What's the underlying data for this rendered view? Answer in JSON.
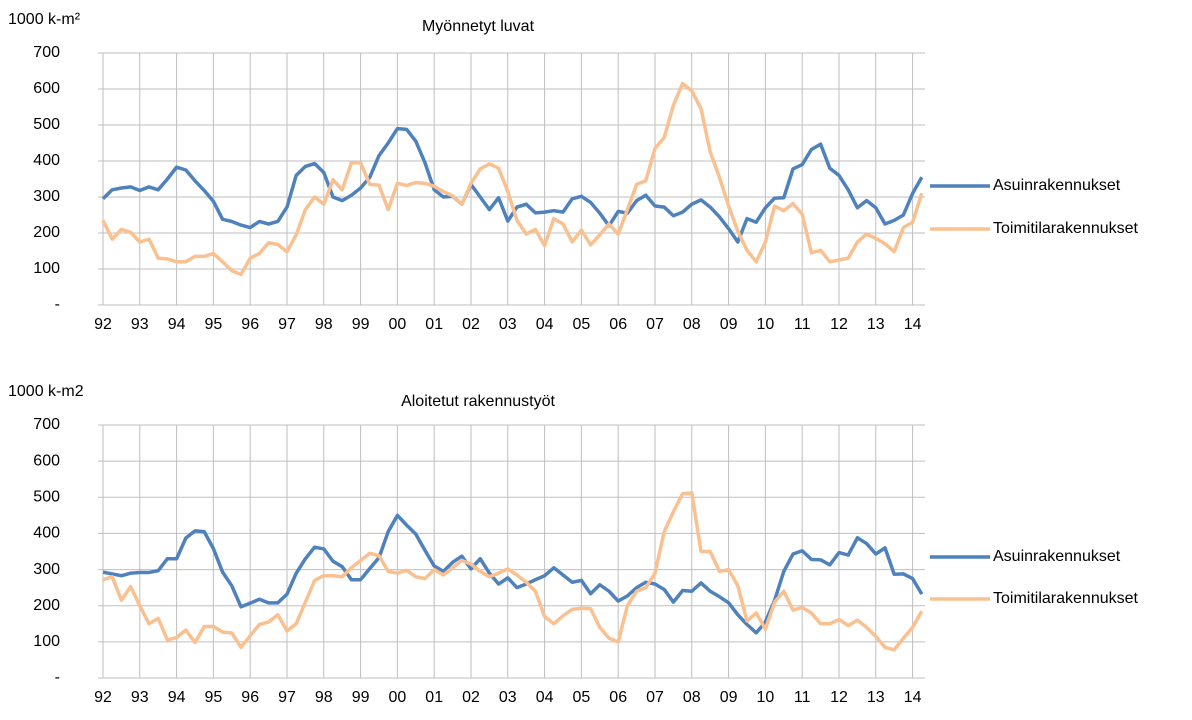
{
  "chart_data": [
    {
      "type": "line",
      "title": "Myönnetyt luvat",
      "y_label": "1000 k-m²",
      "categories": [
        "92",
        null,
        null,
        null,
        "93",
        null,
        null,
        null,
        "94",
        null,
        null,
        null,
        "95",
        null,
        null,
        null,
        "96",
        null,
        null,
        null,
        "97",
        null,
        null,
        null,
        "98",
        null,
        null,
        null,
        "99",
        null,
        null,
        null,
        "00",
        null,
        null,
        null,
        "01",
        null,
        null,
        null,
        "02",
        null,
        null,
        null,
        "03",
        null,
        null,
        null,
        "04",
        null,
        null,
        null,
        "05",
        null,
        null,
        null,
        "06",
        null,
        null,
        null,
        "07",
        null,
        null,
        null,
        "08",
        null,
        null,
        null,
        "09",
        null,
        null,
        null,
        "10",
        null,
        null,
        null,
        "11",
        null,
        null,
        null,
        "12",
        null,
        null,
        null,
        "13",
        null,
        null,
        null,
        "14",
        null
      ],
      "ylim": [
        0,
        700
      ],
      "yticks": [
        {
          "value": 0,
          "label": "-"
        },
        100,
        200,
        300,
        400,
        500,
        600,
        700
      ],
      "grid": true,
      "legend": "right",
      "series": [
        {
          "name": "Asuinrakennukset",
          "color": "#4f81bd",
          "values": [
            295,
            320,
            325,
            328,
            318,
            328,
            320,
            350,
            383,
            375,
            345,
            318,
            288,
            238,
            232,
            222,
            215,
            232,
            225,
            232,
            272,
            360,
            385,
            393,
            368,
            300,
            290,
            305,
            325,
            355,
            415,
            450,
            490,
            488,
            455,
            395,
            320,
            300,
            302,
            280,
            335,
            300,
            265,
            298,
            233,
            272,
            280,
            256,
            258,
            262,
            258,
            295,
            302,
            285,
            255,
            220,
            260,
            255,
            290,
            305,
            275,
            272,
            248,
            258,
            280,
            292,
            272,
            245,
            212,
            175,
            240,
            230,
            270,
            297,
            298,
            378,
            390,
            432,
            447,
            380,
            360,
            320,
            270,
            290,
            270,
            225,
            235,
            250,
            310,
            355
          ]
        },
        {
          "name": "Toimitilarakennukset",
          "color": "#fac090",
          "values": [
            235,
            183,
            210,
            202,
            175,
            183,
            130,
            128,
            120,
            120,
            135,
            135,
            143,
            120,
            95,
            85,
            130,
            143,
            173,
            168,
            148,
            195,
            265,
            300,
            280,
            348,
            320,
            395,
            395,
            335,
            333,
            265,
            338,
            332,
            340,
            338,
            330,
            315,
            303,
            280,
            338,
            378,
            392,
            380,
            315,
            235,
            197,
            210,
            165,
            240,
            225,
            175,
            208,
            167,
            195,
            225,
            197,
            265,
            335,
            345,
            435,
            465,
            555,
            615,
            595,
            545,
            425,
            355,
            275,
            205,
            152,
            120,
            175,
            275,
            262,
            282,
            252,
            145,
            152,
            120,
            125,
            130,
            175,
            197,
            185,
            170,
            148,
            215,
            230,
            310
          ]
        }
      ]
    },
    {
      "type": "line",
      "title": "Aloitetut rakennustyöt",
      "y_label": "1000 k-m2",
      "categories": [
        "92",
        null,
        null,
        null,
        "93",
        null,
        null,
        null,
        "94",
        null,
        null,
        null,
        "95",
        null,
        null,
        null,
        "96",
        null,
        null,
        null,
        "97",
        null,
        null,
        null,
        "98",
        null,
        null,
        null,
        "99",
        null,
        null,
        null,
        "00",
        null,
        null,
        null,
        "01",
        null,
        null,
        null,
        "02",
        null,
        null,
        null,
        "03",
        null,
        null,
        null,
        "04",
        null,
        null,
        null,
        "05",
        null,
        null,
        null,
        "06",
        null,
        null,
        null,
        "07",
        null,
        null,
        null,
        "08",
        null,
        null,
        null,
        "09",
        null,
        null,
        null,
        "10",
        null,
        null,
        null,
        "11",
        null,
        null,
        null,
        "12",
        null,
        null,
        null,
        "13",
        null,
        null,
        null,
        "14",
        null
      ],
      "ylim": [
        0,
        700
      ],
      "yticks": [
        {
          "value": 0,
          "label": "-"
        },
        100,
        200,
        300,
        400,
        500,
        600,
        700
      ],
      "grid": true,
      "legend": "right",
      "series": [
        {
          "name": "Asuinrakennukset",
          "color": "#4f81bd",
          "values": [
            293,
            288,
            283,
            290,
            292,
            292,
            297,
            330,
            330,
            387,
            407,
            405,
            358,
            293,
            255,
            197,
            207,
            218,
            208,
            208,
            232,
            290,
            330,
            362,
            357,
            323,
            308,
            272,
            272,
            303,
            333,
            405,
            450,
            423,
            398,
            353,
            310,
            295,
            320,
            337,
            302,
            330,
            290,
            260,
            277,
            250,
            260,
            272,
            283,
            305,
            285,
            265,
            270,
            233,
            258,
            240,
            213,
            227,
            250,
            265,
            260,
            245,
            210,
            242,
            240,
            263,
            240,
            225,
            208,
            175,
            148,
            125,
            155,
            215,
            295,
            343,
            352,
            328,
            327,
            313,
            347,
            340,
            388,
            372,
            343,
            360,
            287,
            288,
            275,
            232
          ]
        },
        {
          "name": "Toimitilarakennukset",
          "color": "#fac090",
          "values": [
            272,
            280,
            215,
            253,
            200,
            150,
            165,
            105,
            112,
            133,
            98,
            142,
            143,
            127,
            125,
            85,
            117,
            148,
            155,
            175,
            130,
            150,
            210,
            270,
            283,
            283,
            280,
            305,
            325,
            345,
            338,
            295,
            290,
            298,
            280,
            275,
            300,
            285,
            305,
            325,
            315,
            295,
            280,
            290,
            302,
            285,
            265,
            240,
            170,
            150,
            172,
            190,
            193,
            192,
            140,
            110,
            100,
            200,
            240,
            250,
            290,
            405,
            460,
            510,
            512,
            350,
            350,
            295,
            300,
            255,
            158,
            180,
            135,
            210,
            240,
            188,
            195,
            180,
            150,
            150,
            162,
            145,
            160,
            140,
            115,
            85,
            78,
            110,
            140,
            185
          ]
        }
      ]
    }
  ]
}
